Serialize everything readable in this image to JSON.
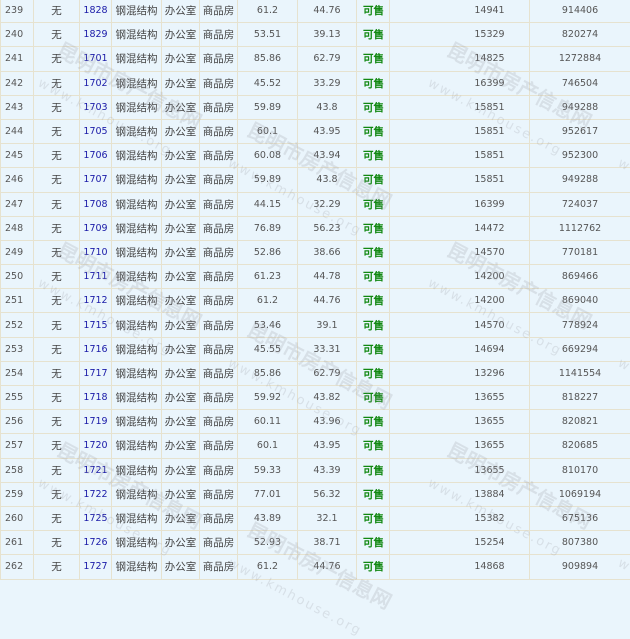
{
  "watermark": {
    "cn": "昆明市房产信息网",
    "url": "www.kmhouse.org"
  },
  "colors": {
    "background": "#eaf5fc",
    "room_link": "#1a1aa8",
    "status": "#118811"
  },
  "rows": [
    {
      "idx": "239",
      "pre": "无",
      "room": "1828",
      "structure": "钢混结构",
      "use": "办公室",
      "type": "商品房",
      "area": "61.2",
      "inner": "44.76",
      "status": "可售",
      "price": "14941",
      "total": "914406"
    },
    {
      "idx": "240",
      "pre": "无",
      "room": "1829",
      "structure": "钢混结构",
      "use": "办公室",
      "type": "商品房",
      "area": "53.51",
      "inner": "39.13",
      "status": "可售",
      "price": "15329",
      "total": "820274"
    },
    {
      "idx": "241",
      "pre": "无",
      "room": "1701",
      "structure": "钢混结构",
      "use": "办公室",
      "type": "商品房",
      "area": "85.86",
      "inner": "62.79",
      "status": "可售",
      "price": "14825",
      "total": "1272884"
    },
    {
      "idx": "242",
      "pre": "无",
      "room": "1702",
      "structure": "钢混结构",
      "use": "办公室",
      "type": "商品房",
      "area": "45.52",
      "inner": "33.29",
      "status": "可售",
      "price": "16399",
      "total": "746504"
    },
    {
      "idx": "243",
      "pre": "无",
      "room": "1703",
      "structure": "钢混结构",
      "use": "办公室",
      "type": "商品房",
      "area": "59.89",
      "inner": "43.8",
      "status": "可售",
      "price": "15851",
      "total": "949288"
    },
    {
      "idx": "244",
      "pre": "无",
      "room": "1705",
      "structure": "钢混结构",
      "use": "办公室",
      "type": "商品房",
      "area": "60.1",
      "inner": "43.95",
      "status": "可售",
      "price": "15851",
      "total": "952617"
    },
    {
      "idx": "245",
      "pre": "无",
      "room": "1706",
      "structure": "钢混结构",
      "use": "办公室",
      "type": "商品房",
      "area": "60.08",
      "inner": "43.94",
      "status": "可售",
      "price": "15851",
      "total": "952300"
    },
    {
      "idx": "246",
      "pre": "无",
      "room": "1707",
      "structure": "钢混结构",
      "use": "办公室",
      "type": "商品房",
      "area": "59.89",
      "inner": "43.8",
      "status": "可售",
      "price": "15851",
      "total": "949288"
    },
    {
      "idx": "247",
      "pre": "无",
      "room": "1708",
      "structure": "钢混结构",
      "use": "办公室",
      "type": "商品房",
      "area": "44.15",
      "inner": "32.29",
      "status": "可售",
      "price": "16399",
      "total": "724037"
    },
    {
      "idx": "248",
      "pre": "无",
      "room": "1709",
      "structure": "钢混结构",
      "use": "办公室",
      "type": "商品房",
      "area": "76.89",
      "inner": "56.23",
      "status": "可售",
      "price": "14472",
      "total": "1112762"
    },
    {
      "idx": "249",
      "pre": "无",
      "room": "1710",
      "structure": "钢混结构",
      "use": "办公室",
      "type": "商品房",
      "area": "52.86",
      "inner": "38.66",
      "status": "可售",
      "price": "14570",
      "total": "770181"
    },
    {
      "idx": "250",
      "pre": "无",
      "room": "1711",
      "structure": "钢混结构",
      "use": "办公室",
      "type": "商品房",
      "area": "61.23",
      "inner": "44.78",
      "status": "可售",
      "price": "14200",
      "total": "869466"
    },
    {
      "idx": "251",
      "pre": "无",
      "room": "1712",
      "structure": "钢混结构",
      "use": "办公室",
      "type": "商品房",
      "area": "61.2",
      "inner": "44.76",
      "status": "可售",
      "price": "14200",
      "total": "869040"
    },
    {
      "idx": "252",
      "pre": "无",
      "room": "1715",
      "structure": "钢混结构",
      "use": "办公室",
      "type": "商品房",
      "area": "53.46",
      "inner": "39.1",
      "status": "可售",
      "price": "14570",
      "total": "778924"
    },
    {
      "idx": "253",
      "pre": "无",
      "room": "1716",
      "structure": "钢混结构",
      "use": "办公室",
      "type": "商品房",
      "area": "45.55",
      "inner": "33.31",
      "status": "可售",
      "price": "14694",
      "total": "669294"
    },
    {
      "idx": "254",
      "pre": "无",
      "room": "1717",
      "structure": "钢混结构",
      "use": "办公室",
      "type": "商品房",
      "area": "85.86",
      "inner": "62.79",
      "status": "可售",
      "price": "13296",
      "total": "1141554"
    },
    {
      "idx": "255",
      "pre": "无",
      "room": "1718",
      "structure": "钢混结构",
      "use": "办公室",
      "type": "商品房",
      "area": "59.92",
      "inner": "43.82",
      "status": "可售",
      "price": "13655",
      "total": "818227"
    },
    {
      "idx": "256",
      "pre": "无",
      "room": "1719",
      "structure": "钢混结构",
      "use": "办公室",
      "type": "商品房",
      "area": "60.11",
      "inner": "43.96",
      "status": "可售",
      "price": "13655",
      "total": "820821"
    },
    {
      "idx": "257",
      "pre": "无",
      "room": "1720",
      "structure": "钢混结构",
      "use": "办公室",
      "type": "商品房",
      "area": "60.1",
      "inner": "43.95",
      "status": "可售",
      "price": "13655",
      "total": "820685"
    },
    {
      "idx": "258",
      "pre": "无",
      "room": "1721",
      "structure": "钢混结构",
      "use": "办公室",
      "type": "商品房",
      "area": "59.33",
      "inner": "43.39",
      "status": "可售",
      "price": "13655",
      "total": "810170"
    },
    {
      "idx": "259",
      "pre": "无",
      "room": "1722",
      "structure": "钢混结构",
      "use": "办公室",
      "type": "商品房",
      "area": "77.01",
      "inner": "56.32",
      "status": "可售",
      "price": "13884",
      "total": "1069194"
    },
    {
      "idx": "260",
      "pre": "无",
      "room": "1725",
      "structure": "钢混结构",
      "use": "办公室",
      "type": "商品房",
      "area": "43.89",
      "inner": "32.1",
      "status": "可售",
      "price": "15382",
      "total": "675136"
    },
    {
      "idx": "261",
      "pre": "无",
      "room": "1726",
      "structure": "钢混结构",
      "use": "办公室",
      "type": "商品房",
      "area": "52.93",
      "inner": "38.71",
      "status": "可售",
      "price": "15254",
      "total": "807380"
    },
    {
      "idx": "262",
      "pre": "无",
      "room": "1727",
      "structure": "钢混结构",
      "use": "办公室",
      "type": "商品房",
      "area": "61.2",
      "inner": "44.76",
      "status": "可售",
      "price": "14868",
      "total": "909894"
    }
  ]
}
